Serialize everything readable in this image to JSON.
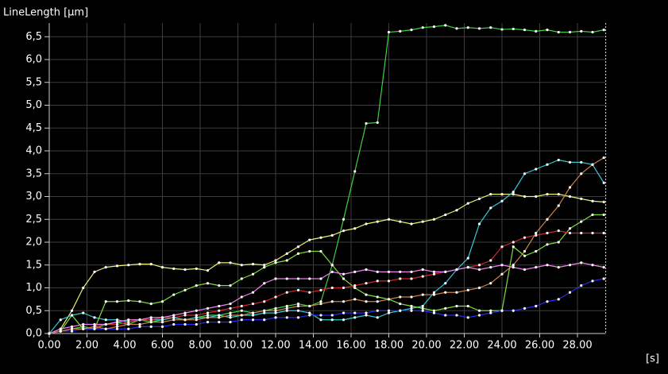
{
  "chart_data": {
    "type": "line",
    "y_label": "LineLength [µm]",
    "x_label": "[s]",
    "grid": true,
    "xlim": [
      0,
      29.5
    ],
    "ylim": [
      0,
      6.8
    ],
    "xticks": [
      {
        "value": 0,
        "label": "0.00"
      },
      {
        "value": 2,
        "label": "2.00"
      },
      {
        "value": 4,
        "label": "4.00"
      },
      {
        "value": 6,
        "label": "6.00"
      },
      {
        "value": 8,
        "label": "8.00"
      },
      {
        "value": 10,
        "label": "10.00"
      },
      {
        "value": 12,
        "label": "12.00"
      },
      {
        "value": 14,
        "label": "14.00"
      },
      {
        "value": 16,
        "label": "16.00"
      },
      {
        "value": 18,
        "label": "18.00"
      },
      {
        "value": 20,
        "label": "20.00"
      },
      {
        "value": 22,
        "label": "22.00"
      },
      {
        "value": 24,
        "label": "24.00"
      },
      {
        "value": 26,
        "label": "26.00"
      },
      {
        "value": 28,
        "label": "28.00"
      }
    ],
    "yticks": [
      {
        "value": 0,
        "label": "0,0"
      },
      {
        "value": 0.5,
        "label": "0,5"
      },
      {
        "value": 1,
        "label": "1,0"
      },
      {
        "value": 1.5,
        "label": "1,5"
      },
      {
        "value": 2,
        "label": "2,0"
      },
      {
        "value": 2.5,
        "label": "2,5"
      },
      {
        "value": 3,
        "label": "3,0"
      },
      {
        "value": 3.5,
        "label": "3,5"
      },
      {
        "value": 4,
        "label": "4,0"
      },
      {
        "value": 4.5,
        "label": "4,5"
      },
      {
        "value": 5,
        "label": "5,0"
      },
      {
        "value": 5.5,
        "label": "5,5"
      },
      {
        "value": 6,
        "label": "6,0"
      },
      {
        "value": 6.5,
        "label": "6,5"
      }
    ],
    "x": [
      0,
      0.6,
      1.2,
      1.8,
      2.4,
      3,
      3.6,
      4.2,
      4.8,
      5.4,
      6,
      6.6,
      7.2,
      7.8,
      8.4,
      9,
      9.6,
      10.2,
      10.8,
      11.4,
      12,
      12.6,
      13.2,
      13.8,
      14.4,
      15,
      15.6,
      16.2,
      16.8,
      17.4,
      18,
      18.6,
      19.2,
      19.8,
      20.4,
      21,
      21.6,
      22.2,
      22.8,
      23.4,
      24,
      24.6,
      25.2,
      25.8,
      26.4,
      27,
      27.6,
      28.2,
      28.8,
      29.4
    ],
    "series": [
      {
        "color": "#3fd23f",
        "values": [
          0,
          0.05,
          0.1,
          0.15,
          0.1,
          0.2,
          0.25,
          0.2,
          0.3,
          0.25,
          0.3,
          0.35,
          0.3,
          0.35,
          0.4,
          0.4,
          0.45,
          0.5,
          0.45,
          0.5,
          0.55,
          0.6,
          0.65,
          0.6,
          0.7,
          1.5,
          2.5,
          3.55,
          4.6,
          4.62,
          6.6,
          6.62,
          6.65,
          6.7,
          6.72,
          6.75,
          6.68,
          6.7,
          6.68,
          6.7,
          6.66,
          6.67,
          6.65,
          6.62,
          6.65,
          6.6,
          6.6,
          6.62,
          6.6,
          6.65
        ]
      },
      {
        "color": "#f0f070",
        "values": [
          0,
          0.1,
          0.5,
          1.0,
          1.35,
          1.45,
          1.48,
          1.5,
          1.52,
          1.52,
          1.45,
          1.42,
          1.4,
          1.42,
          1.38,
          1.55,
          1.55,
          1.5,
          1.52,
          1.5,
          1.6,
          1.75,
          1.9,
          2.05,
          2.1,
          2.15,
          2.25,
          2.3,
          2.4,
          2.45,
          2.5,
          2.45,
          2.4,
          2.45,
          2.5,
          2.6,
          2.7,
          2.85,
          2.95,
          3.05,
          3.05,
          3.05,
          3.0,
          3.0,
          3.05,
          3.05,
          3.0,
          2.95,
          2.9,
          2.88
        ]
      },
      {
        "color": "#33c8d8",
        "values": [
          0,
          0.3,
          0.4,
          0.45,
          0.35,
          0.3,
          0.3,
          0.25,
          0.3,
          0.3,
          0.3,
          0.35,
          0.3,
          0.35,
          0.35,
          0.4,
          0.35,
          0.4,
          0.4,
          0.45,
          0.45,
          0.5,
          0.5,
          0.45,
          0.3,
          0.3,
          0.3,
          0.35,
          0.4,
          0.35,
          0.45,
          0.5,
          0.55,
          0.6,
          0.9,
          1.1,
          1.4,
          1.65,
          2.4,
          2.75,
          2.9,
          3.1,
          3.5,
          3.6,
          3.7,
          3.8,
          3.75,
          3.75,
          3.7,
          3.3
        ]
      },
      {
        "color": "#7de03a",
        "values": [
          0,
          0.05,
          0.4,
          0.1,
          0.1,
          0.7,
          0.7,
          0.72,
          0.7,
          0.65,
          0.7,
          0.85,
          0.95,
          1.05,
          1.1,
          1.05,
          1.05,
          1.2,
          1.3,
          1.45,
          1.55,
          1.6,
          1.75,
          1.8,
          1.8,
          1.5,
          1.2,
          1.0,
          0.85,
          0.8,
          0.75,
          0.65,
          0.6,
          0.55,
          0.5,
          0.55,
          0.6,
          0.6,
          0.5,
          0.5,
          0.5,
          1.9,
          1.7,
          1.8,
          1.95,
          2.0,
          2.3,
          2.45,
          2.6,
          2.6
        ]
      },
      {
        "color": "#d02828",
        "values": [
          0,
          0.05,
          0.1,
          0.1,
          0.15,
          0.2,
          0.2,
          0.25,
          0.3,
          0.3,
          0.35,
          0.35,
          0.4,
          0.4,
          0.45,
          0.5,
          0.55,
          0.6,
          0.65,
          0.7,
          0.8,
          0.9,
          0.95,
          0.9,
          0.95,
          1.0,
          1.0,
          1.05,
          1.1,
          1.15,
          1.15,
          1.2,
          1.2,
          1.25,
          1.3,
          1.35,
          1.4,
          1.45,
          1.5,
          1.6,
          1.9,
          2.0,
          2.1,
          2.15,
          2.2,
          2.25,
          2.2,
          2.2,
          2.2,
          2.2
        ]
      },
      {
        "color": "#f080f0",
        "values": [
          0,
          0.1,
          0.15,
          0.2,
          0.2,
          0.2,
          0.25,
          0.3,
          0.3,
          0.35,
          0.35,
          0.4,
          0.45,
          0.5,
          0.55,
          0.6,
          0.65,
          0.8,
          0.9,
          1.1,
          1.2,
          1.2,
          1.2,
          1.2,
          1.2,
          1.35,
          1.3,
          1.35,
          1.4,
          1.35,
          1.35,
          1.35,
          1.35,
          1.4,
          1.35,
          1.35,
          1.4,
          1.45,
          1.4,
          1.45,
          1.5,
          1.45,
          1.4,
          1.45,
          1.5,
          1.45,
          1.5,
          1.55,
          1.5,
          1.45
        ]
      },
      {
        "color": "#2a2af0",
        "values": [
          0,
          0.05,
          0.05,
          0.1,
          0.1,
          0.1,
          0.1,
          0.1,
          0.15,
          0.15,
          0.15,
          0.2,
          0.2,
          0.2,
          0.25,
          0.25,
          0.25,
          0.3,
          0.3,
          0.3,
          0.35,
          0.35,
          0.35,
          0.4,
          0.4,
          0.4,
          0.45,
          0.45,
          0.45,
          0.5,
          0.5,
          0.5,
          0.5,
          0.5,
          0.45,
          0.4,
          0.4,
          0.35,
          0.4,
          0.45,
          0.5,
          0.5,
          0.55,
          0.6,
          0.7,
          0.75,
          0.9,
          1.05,
          1.15,
          1.2
        ]
      },
      {
        "color": "#c8824a",
        "values": [
          0,
          0.05,
          0.1,
          0.1,
          0.15,
          0.1,
          0.15,
          0.2,
          0.2,
          0.25,
          0.25,
          0.3,
          0.3,
          0.3,
          0.35,
          0.35,
          0.4,
          0.4,
          0.45,
          0.5,
          0.5,
          0.55,
          0.6,
          0.6,
          0.65,
          0.7,
          0.7,
          0.75,
          0.7,
          0.7,
          0.75,
          0.8,
          0.8,
          0.85,
          0.85,
          0.9,
          0.9,
          0.95,
          1.0,
          1.1,
          1.3,
          1.5,
          1.8,
          2.2,
          2.5,
          2.8,
          3.2,
          3.5,
          3.7,
          3.85
        ]
      }
    ]
  }
}
